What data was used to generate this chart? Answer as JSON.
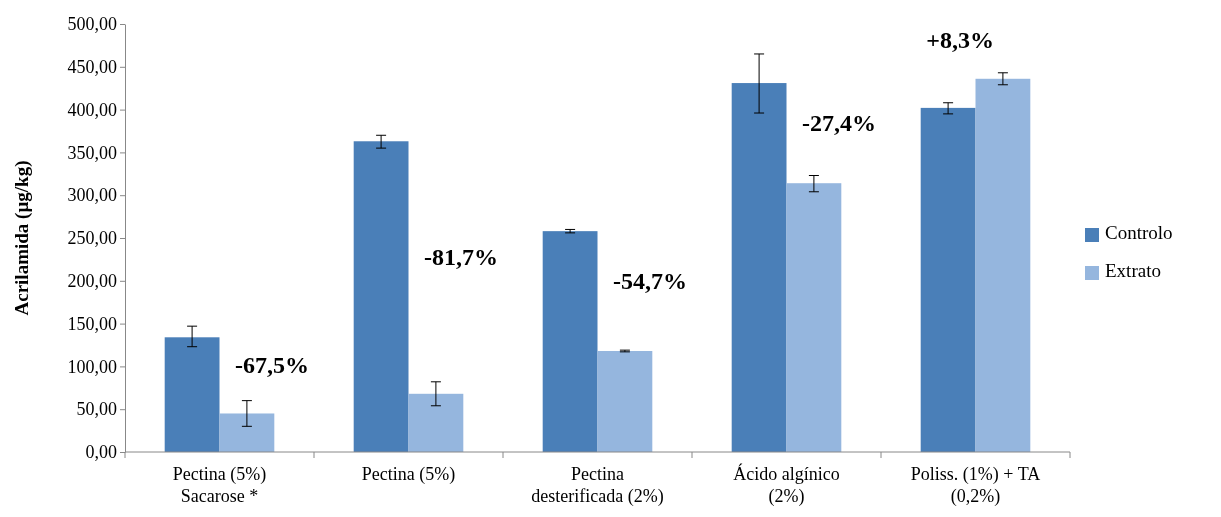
{
  "chart_data": {
    "type": "bar",
    "ylabel": "Acrilamida (µg/kg)",
    "categories": [
      "Pectina (5%)\nSacarose *",
      "Pectina (5%)",
      "Pectina\ndesterificada (2%)",
      "Ácido algínico\n(2%)",
      "Poliss. (1%) + TA\n(0,2%)"
    ],
    "series": [
      {
        "name": "Controlo",
        "color": "#4a7fb8",
        "values": [
          134,
          363,
          258,
          431,
          402
        ],
        "errors": [
          [
            123,
            147
          ],
          [
            355,
            370
          ],
          [
            256,
            260
          ],
          [
            396,
            465
          ],
          [
            395,
            408
          ]
        ]
      },
      {
        "name": "Extrato",
        "color": "#95b6de",
        "values": [
          45,
          68,
          118,
          314,
          436
        ],
        "errors": [
          [
            30,
            60
          ],
          [
            54,
            82
          ],
          [
            117,
            119
          ],
          [
            304,
            323
          ],
          [
            429,
            443
          ]
        ]
      }
    ],
    "ylim": [
      0,
      500
    ],
    "yticks": [
      {
        "value": 0,
        "label": "0,00"
      },
      {
        "value": 50,
        "label": "50,00"
      },
      {
        "value": 100,
        "label": "100,00"
      },
      {
        "value": 150,
        "label": "150,00"
      },
      {
        "value": 200,
        "label": "200,00"
      },
      {
        "value": 250,
        "label": "250,00"
      },
      {
        "value": 300,
        "label": "300,00"
      },
      {
        "value": 350,
        "label": "350,00"
      },
      {
        "value": 400,
        "label": "400,00"
      },
      {
        "value": 450,
        "label": "450,00"
      },
      {
        "value": 500,
        "label": "500,00"
      }
    ],
    "annotations": [
      "-67,5%",
      "-81,7%",
      "-54,7%",
      "-27,4%",
      "+8,3%"
    ],
    "grid": false,
    "legend": "right"
  }
}
